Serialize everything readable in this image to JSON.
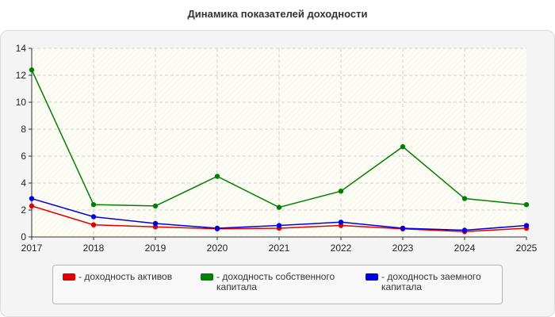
{
  "chart_data": {
    "type": "line",
    "title": "Динамика показателей доходности",
    "xlabel": "",
    "ylabel": "",
    "categories": [
      "2017",
      "2018",
      "2019",
      "2020",
      "2021",
      "2022",
      "2023",
      "2024",
      "2025"
    ],
    "ylim": [
      0,
      14
    ],
    "yticks": [
      0,
      2,
      4,
      6,
      8,
      10,
      12,
      14
    ],
    "grid": true,
    "legend_position": "bottom",
    "series": [
      {
        "name": "- доходность активов",
        "color": "#e00000",
        "values": [
          2.3,
          0.9,
          0.75,
          0.6,
          0.65,
          0.85,
          0.6,
          0.4,
          0.65
        ]
      },
      {
        "name": "- доходность собственного капитала",
        "color": "#008000",
        "values": [
          12.4,
          2.4,
          2.3,
          4.5,
          2.2,
          3.4,
          6.7,
          2.85,
          2.4
        ]
      },
      {
        "name": "- доходность заемного капитала",
        "color": "#0000e0",
        "values": [
          2.85,
          1.5,
          1.0,
          0.65,
          0.85,
          1.1,
          0.65,
          0.5,
          0.85
        ]
      }
    ]
  }
}
